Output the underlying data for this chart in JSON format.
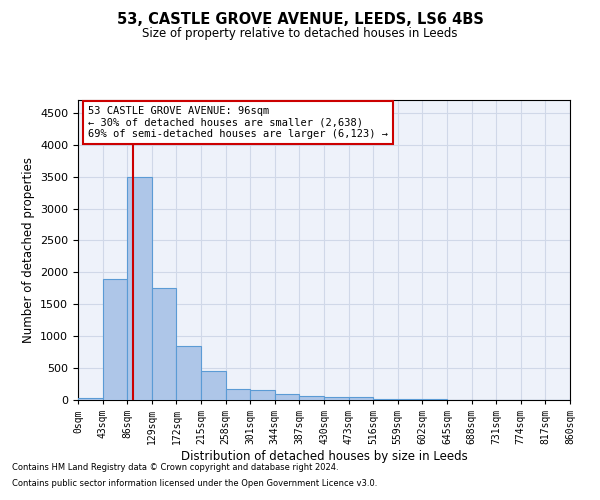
{
  "title1": "53, CASTLE GROVE AVENUE, LEEDS, LS6 4BS",
  "title2": "Size of property relative to detached houses in Leeds",
  "xlabel": "Distribution of detached houses by size in Leeds",
  "ylabel": "Number of detached properties",
  "annotation_line1": "53 CASTLE GROVE AVENUE: 96sqm",
  "annotation_line2": "← 30% of detached houses are smaller (2,638)",
  "annotation_line3": "69% of semi-detached houses are larger (6,123) →",
  "footnote1": "Contains HM Land Registry data © Crown copyright and database right 2024.",
  "footnote2": "Contains public sector information licensed under the Open Government Licence v3.0.",
  "property_sqm": 96,
  "bin_edges": [
    0,
    43,
    86,
    129,
    172,
    215,
    258,
    301,
    344,
    387,
    430,
    473,
    516,
    559,
    602,
    645,
    688,
    731,
    774,
    817,
    860
  ],
  "bar_heights": [
    30,
    1900,
    3500,
    1750,
    850,
    450,
    175,
    160,
    100,
    65,
    50,
    40,
    20,
    12,
    8,
    5,
    4,
    3,
    2,
    2
  ],
  "bar_color": "#aec6e8",
  "bar_edge_color": "#5b9bd5",
  "red_line_color": "#cc0000",
  "grid_color": "#d0d8e8",
  "background_color": "#eef2fa",
  "ylim": [
    0,
    4700
  ],
  "yticks": [
    0,
    500,
    1000,
    1500,
    2000,
    2500,
    3000,
    3500,
    4000,
    4500
  ],
  "annotation_box_color": "#ffffff",
  "annotation_box_edge": "#cc0000"
}
